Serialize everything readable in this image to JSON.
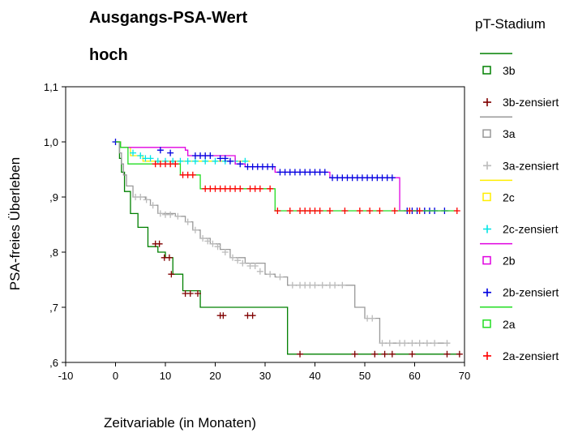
{
  "chart_data": {
    "type": "line",
    "title": "Ausgangs-PSA-Wert",
    "subtitle": "hoch",
    "xlabel": "Zeitvariable (in Monaten)",
    "ylabel": "PSA-freies Überleben",
    "xlim": [
      -10,
      70
    ],
    "ylim": [
      0.6,
      1.1
    ],
    "x_ticks": [
      -10,
      0,
      10,
      20,
      30,
      40,
      50,
      60,
      70
    ],
    "x_tick_labels": [
      "-10",
      "0",
      "10",
      "20",
      "30",
      "40",
      "50",
      "60",
      "70"
    ],
    "y_ticks": [
      0.6,
      0.7,
      0.8,
      0.9,
      1.0,
      1.1
    ],
    "y_tick_labels": [
      ",6",
      ",7",
      ",8",
      ",9",
      "1,0",
      "1,1"
    ],
    "legend_title": "pT-Stadium",
    "legend_position": "right",
    "legend": [
      {
        "label": "3b",
        "kind": "line",
        "color": "#008000"
      },
      {
        "label": "3b-zensiert",
        "kind": "censor",
        "color": "#800000"
      },
      {
        "label": "3a",
        "kind": "line",
        "color": "#999999"
      },
      {
        "label": "3a-zensiert",
        "kind": "censor",
        "color": "#bbbbbb"
      },
      {
        "label": "2c",
        "kind": "line",
        "color": "#ffee00"
      },
      {
        "label": "2c-zensiert",
        "kind": "censor",
        "color": "#00e5e5"
      },
      {
        "label": "2b",
        "kind": "line",
        "color": "#e000e0"
      },
      {
        "label": "2b-zensiert",
        "kind": "censor",
        "color": "#0000e0"
      },
      {
        "label": "2a",
        "kind": "line",
        "color": "#22dd22"
      },
      {
        "label": "2a-zensiert",
        "kind": "censor",
        "color": "#ff0000"
      }
    ],
    "series": [
      {
        "name": "3b",
        "color": "#008000",
        "censor_color": "#800000",
        "steps": [
          [
            0,
            1.0
          ],
          [
            0.8,
            0.97
          ],
          [
            1.2,
            0.945
          ],
          [
            1.8,
            0.91
          ],
          [
            3,
            0.87
          ],
          [
            4.5,
            0.845
          ],
          [
            6.5,
            0.81
          ],
          [
            8.5,
            0.8
          ],
          [
            10,
            0.79
          ],
          [
            11.5,
            0.76
          ],
          [
            13.5,
            0.73
          ],
          [
            17,
            0.7
          ],
          [
            34.5,
            0.615
          ],
          [
            69,
            0.615
          ]
        ],
        "censored": [
          [
            8,
            0.815
          ],
          [
            8.8,
            0.815
          ],
          [
            9.8,
            0.79
          ],
          [
            10.8,
            0.79
          ],
          [
            11.2,
            0.76
          ],
          [
            14,
            0.725
          ],
          [
            15,
            0.725
          ],
          [
            16.5,
            0.725
          ],
          [
            21,
            0.685
          ],
          [
            21.6,
            0.685
          ],
          [
            26.5,
            0.685
          ],
          [
            27.5,
            0.685
          ],
          [
            37,
            0.615
          ],
          [
            48,
            0.615
          ],
          [
            52,
            0.615
          ],
          [
            54,
            0.615
          ],
          [
            55.5,
            0.615
          ],
          [
            59.5,
            0.615
          ],
          [
            66.5,
            0.615
          ],
          [
            69,
            0.615
          ]
        ]
      },
      {
        "name": "3a",
        "color": "#999999",
        "censor_color": "#bbbbbb",
        "steps": [
          [
            0,
            1.0
          ],
          [
            0.8,
            0.98
          ],
          [
            1.2,
            0.96
          ],
          [
            1.6,
            0.94
          ],
          [
            2.2,
            0.92
          ],
          [
            3.5,
            0.9
          ],
          [
            6,
            0.895
          ],
          [
            7,
            0.885
          ],
          [
            8.5,
            0.87
          ],
          [
            12,
            0.865
          ],
          [
            14,
            0.855
          ],
          [
            15.5,
            0.84
          ],
          [
            17,
            0.825
          ],
          [
            19,
            0.815
          ],
          [
            21,
            0.805
          ],
          [
            23,
            0.79
          ],
          [
            26,
            0.78
          ],
          [
            30,
            0.76
          ],
          [
            32,
            0.755
          ],
          [
            34.5,
            0.74
          ],
          [
            48,
            0.7
          ],
          [
            50,
            0.68
          ],
          [
            53,
            0.635
          ],
          [
            67,
            0.635
          ]
        ],
        "censored": [
          [
            4,
            0.9
          ],
          [
            5,
            0.9
          ],
          [
            6.2,
            0.895
          ],
          [
            7.5,
            0.885
          ],
          [
            9,
            0.87
          ],
          [
            10,
            0.868
          ],
          [
            11,
            0.868
          ],
          [
            12.5,
            0.865
          ],
          [
            14.5,
            0.855
          ],
          [
            16,
            0.84
          ],
          [
            17.5,
            0.825
          ],
          [
            18.5,
            0.82
          ],
          [
            19.5,
            0.815
          ],
          [
            20.5,
            0.81
          ],
          [
            22,
            0.8
          ],
          [
            23.5,
            0.79
          ],
          [
            24.5,
            0.785
          ],
          [
            25.5,
            0.78
          ],
          [
            27,
            0.775
          ],
          [
            28,
            0.775
          ],
          [
            29,
            0.765
          ],
          [
            31,
            0.76
          ],
          [
            33,
            0.755
          ],
          [
            35.5,
            0.74
          ],
          [
            37,
            0.74
          ],
          [
            38,
            0.74
          ],
          [
            39,
            0.74
          ],
          [
            40,
            0.74
          ],
          [
            41.5,
            0.74
          ],
          [
            43,
            0.74
          ],
          [
            44,
            0.74
          ],
          [
            45.5,
            0.74
          ],
          [
            50.5,
            0.68
          ],
          [
            51.5,
            0.68
          ],
          [
            53.5,
            0.635
          ],
          [
            55,
            0.635
          ],
          [
            57,
            0.635
          ],
          [
            58,
            0.635
          ],
          [
            59.5,
            0.635
          ],
          [
            61,
            0.635
          ],
          [
            62.5,
            0.635
          ],
          [
            64,
            0.635
          ],
          [
            66.5,
            0.635
          ]
        ]
      },
      {
        "name": "2c",
        "color": "#ffee00",
        "censor_color": "#00e5e5",
        "steps": [
          [
            0,
            1.0
          ],
          [
            1,
            0.99
          ],
          [
            3,
            0.975
          ],
          [
            5.5,
            0.965
          ],
          [
            27,
            0.965
          ]
        ],
        "censored": [
          [
            3.5,
            0.98
          ],
          [
            5,
            0.975
          ],
          [
            6,
            0.97
          ],
          [
            7,
            0.97
          ],
          [
            8.5,
            0.965
          ],
          [
            10,
            0.965
          ],
          [
            11.5,
            0.965
          ],
          [
            13,
            0.965
          ],
          [
            14.5,
            0.965
          ],
          [
            16,
            0.965
          ],
          [
            18,
            0.965
          ],
          [
            20,
            0.965
          ],
          [
            22,
            0.965
          ],
          [
            24,
            0.965
          ],
          [
            26,
            0.965
          ]
        ]
      },
      {
        "name": "2b",
        "color": "#e000e0",
        "censor_color": "#0000e0",
        "steps": [
          [
            0,
            1.0
          ],
          [
            1,
            0.99
          ],
          [
            14,
            0.985
          ],
          [
            14.5,
            0.975
          ],
          [
            24,
            0.96
          ],
          [
            26,
            0.955
          ],
          [
            32,
            0.945
          ],
          [
            43,
            0.935
          ],
          [
            57,
            0.875
          ],
          [
            67,
            0.875
          ]
        ],
        "censored": [
          [
            0,
            1.0
          ],
          [
            9,
            0.985
          ],
          [
            11,
            0.98
          ],
          [
            16,
            0.975
          ],
          [
            17,
            0.975
          ],
          [
            18,
            0.975
          ],
          [
            19,
            0.975
          ],
          [
            21,
            0.97
          ],
          [
            22,
            0.97
          ],
          [
            23,
            0.965
          ],
          [
            25,
            0.96
          ],
          [
            26.5,
            0.955
          ],
          [
            27.5,
            0.955
          ],
          [
            28.5,
            0.955
          ],
          [
            29.5,
            0.955
          ],
          [
            30.5,
            0.955
          ],
          [
            31.5,
            0.955
          ],
          [
            33,
            0.945
          ],
          [
            34,
            0.945
          ],
          [
            35,
            0.945
          ],
          [
            36,
            0.945
          ],
          [
            37,
            0.945
          ],
          [
            38,
            0.945
          ],
          [
            39,
            0.945
          ],
          [
            40,
            0.945
          ],
          [
            41,
            0.945
          ],
          [
            42,
            0.945
          ],
          [
            43.5,
            0.935
          ],
          [
            44.5,
            0.935
          ],
          [
            45.5,
            0.935
          ],
          [
            46.5,
            0.935
          ],
          [
            47.5,
            0.935
          ],
          [
            48.5,
            0.935
          ],
          [
            49.5,
            0.935
          ],
          [
            50.5,
            0.935
          ],
          [
            51.5,
            0.935
          ],
          [
            52.5,
            0.935
          ],
          [
            53.5,
            0.935
          ],
          [
            54.5,
            0.935
          ],
          [
            55.5,
            0.935
          ],
          [
            58.5,
            0.875
          ],
          [
            59.5,
            0.875
          ],
          [
            60.5,
            0.875
          ],
          [
            62,
            0.875
          ],
          [
            63,
            0.875
          ],
          [
            64,
            0.875
          ],
          [
            66,
            0.875
          ]
        ]
      },
      {
        "name": "2a",
        "color": "#22dd22",
        "censor_color": "#ff0000",
        "steps": [
          [
            0,
            1.0
          ],
          [
            1,
            0.99
          ],
          [
            2.5,
            0.96
          ],
          [
            7,
            0.96
          ],
          [
            13,
            0.94
          ],
          [
            17,
            0.915
          ],
          [
            32,
            0.875
          ],
          [
            68.5,
            0.875
          ]
        ],
        "censored": [
          [
            8,
            0.96
          ],
          [
            9,
            0.96
          ],
          [
            10,
            0.96
          ],
          [
            11,
            0.96
          ],
          [
            12,
            0.96
          ],
          [
            13.5,
            0.94
          ],
          [
            14.5,
            0.94
          ],
          [
            15.5,
            0.94
          ],
          [
            18,
            0.915
          ],
          [
            19,
            0.915
          ],
          [
            20,
            0.915
          ],
          [
            21,
            0.915
          ],
          [
            22,
            0.915
          ],
          [
            23,
            0.915
          ],
          [
            24,
            0.915
          ],
          [
            25,
            0.915
          ],
          [
            27,
            0.915
          ],
          [
            28,
            0.915
          ],
          [
            29,
            0.915
          ],
          [
            31,
            0.915
          ],
          [
            32.5,
            0.875
          ],
          [
            35,
            0.875
          ],
          [
            37,
            0.875
          ],
          [
            38,
            0.875
          ],
          [
            39,
            0.875
          ],
          [
            40,
            0.875
          ],
          [
            41,
            0.875
          ],
          [
            43,
            0.875
          ],
          [
            46,
            0.875
          ],
          [
            49,
            0.875
          ],
          [
            51,
            0.875
          ],
          [
            53,
            0.875
          ],
          [
            56,
            0.875
          ],
          [
            59,
            0.875
          ],
          [
            61,
            0.875
          ],
          [
            68.5,
            0.875
          ]
        ]
      }
    ]
  }
}
